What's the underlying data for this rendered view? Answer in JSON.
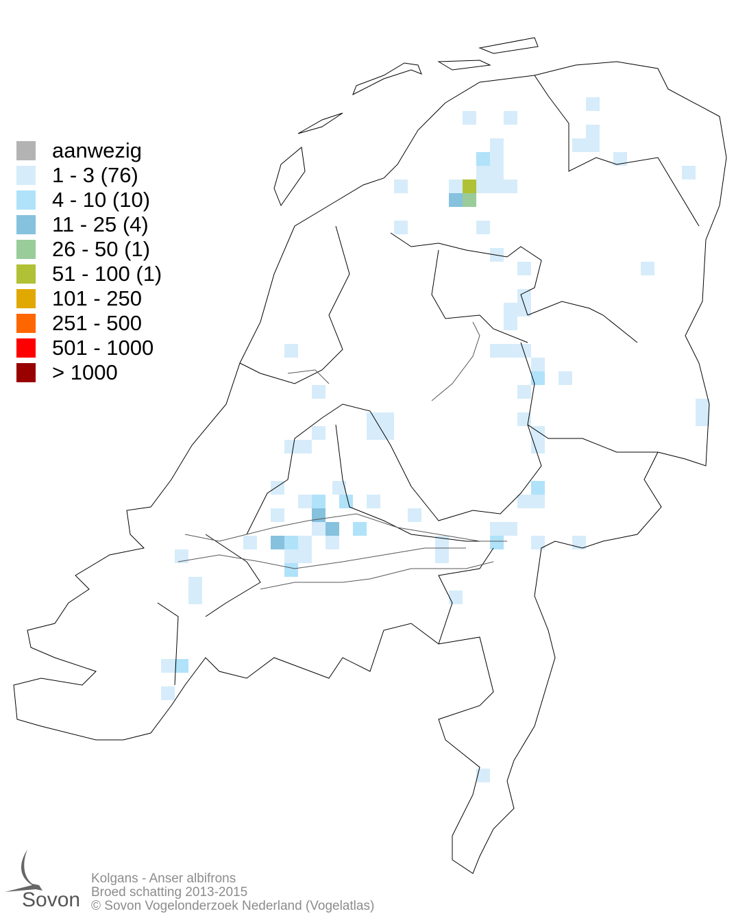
{
  "legend": {
    "items": [
      {
        "label": "aanwezig",
        "color": "#b3b3b3"
      },
      {
        "label": "1 - 3 (76)",
        "color": "#d6ecfa"
      },
      {
        "label": "4 - 10 (10)",
        "color": "#b0e2fa"
      },
      {
        "label": "11 - 25 (4)",
        "color": "#86c1de"
      },
      {
        "label": "26 - 50 (1)",
        "color": "#99cc99"
      },
      {
        "label": "51 - 100 (1)",
        "color": "#b0c136"
      },
      {
        "label": "101 - 250",
        "color": "#e0a800"
      },
      {
        "label": "251 - 500",
        "color": "#ff6600"
      },
      {
        "label": "501 - 1000",
        "color": "#ff0000"
      },
      {
        "label": "> 1000",
        "color": "#990000"
      }
    ]
  },
  "footer": {
    "species": "Kolgans - Anser albifrons",
    "subtitle": "Broed schatting 2013-2015",
    "copyright": "© Sovon Vogelonderzoek Nederland (Vogelatlas)"
  },
  "logo": {
    "text": "Sovon"
  }
}
